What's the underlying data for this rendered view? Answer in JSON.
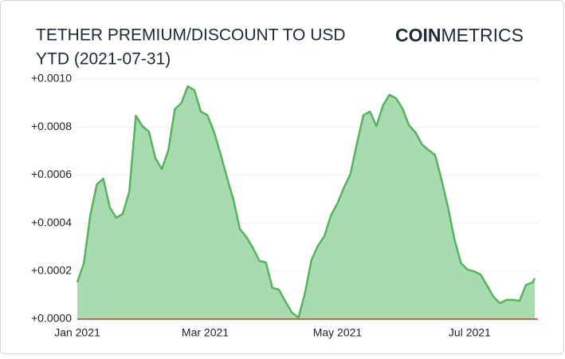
{
  "chart_data": {
    "type": "area",
    "title_lines": [
      "TETHER PREMIUM/DISCOUNT TO USD",
      "YTD (2021-07-31)"
    ],
    "logo": {
      "bold": "COIN",
      "light": "METRICS"
    },
    "x": [
      "2021-01-01",
      "2021-01-04",
      "2021-01-07",
      "2021-01-10",
      "2021-01-13",
      "2021-01-16",
      "2021-01-19",
      "2021-01-22",
      "2021-01-25",
      "2021-01-28",
      "2021-01-31",
      "2021-02-03",
      "2021-02-06",
      "2021-02-09",
      "2021-02-12",
      "2021-02-15",
      "2021-02-18",
      "2021-02-21",
      "2021-02-24",
      "2021-02-27",
      "2021-03-02",
      "2021-03-05",
      "2021-03-08",
      "2021-03-11",
      "2021-03-14",
      "2021-03-17",
      "2021-03-20",
      "2021-03-23",
      "2021-03-26",
      "2021-03-29",
      "2021-04-01",
      "2021-04-04",
      "2021-04-07",
      "2021-04-10",
      "2021-04-13",
      "2021-04-16",
      "2021-04-19",
      "2021-04-22",
      "2021-04-25",
      "2021-04-28",
      "2021-05-01",
      "2021-05-04",
      "2021-05-07",
      "2021-05-10",
      "2021-05-13",
      "2021-05-16",
      "2021-05-19",
      "2021-05-22",
      "2021-05-25",
      "2021-05-28",
      "2021-05-31",
      "2021-06-03",
      "2021-06-06",
      "2021-06-09",
      "2021-06-12",
      "2021-06-15",
      "2021-06-18",
      "2021-06-21",
      "2021-06-24",
      "2021-06-27",
      "2021-06-30",
      "2021-07-03",
      "2021-07-06",
      "2021-07-09",
      "2021-07-12",
      "2021-07-15",
      "2021-07-18",
      "2021-07-21",
      "2021-07-24",
      "2021-07-27",
      "2021-07-30",
      "2021-07-31"
    ],
    "series": [
      {
        "name": "Tether premium",
        "color": "#56b35d",
        "fill": "#a8dbb0",
        "values": [
          0.000153,
          0.000233,
          0.000432,
          0.000561,
          0.000585,
          0.000465,
          0.000422,
          0.000439,
          0.000532,
          0.000847,
          0.000804,
          0.000781,
          0.000671,
          0.000625,
          0.000704,
          0.000874,
          0.0009,
          0.00097,
          0.000953,
          0.000864,
          0.00085,
          0.000781,
          0.000691,
          0.000591,
          0.000498,
          0.000375,
          0.000342,
          0.000296,
          0.000243,
          0.000236,
          0.00013,
          0.000123,
          7.3e-05,
          2.7e-05,
          7e-06,
          0.000106,
          0.000246,
          0.000306,
          0.000346,
          0.000432,
          0.000482,
          0.000548,
          0.000605,
          0.000731,
          0.00085,
          0.000864,
          0.000804,
          0.00089,
          0.000934,
          0.00092,
          0.000877,
          0.000807,
          0.000777,
          0.000728,
          0.000704,
          0.000684,
          0.000581,
          0.000465,
          0.000332,
          0.000233,
          0.000206,
          0.000199,
          0.000186,
          0.00014,
          9.3e-05,
          6.6e-05,
          8e-05,
          8e-05,
          7.6e-05,
          0.000143,
          0.000153,
          0.00017
        ]
      }
    ],
    "xlim": [
      "2021-01-01",
      "2021-07-31"
    ],
    "xticks": [
      {
        "value": "2021-01-01",
        "label": "Jan 2021"
      },
      {
        "value": "2021-03-01",
        "label": "Mar 2021"
      },
      {
        "value": "2021-05-01",
        "label": "May 2021"
      },
      {
        "value": "2021-07-01",
        "label": "Jul 2021"
      }
    ],
    "ylim": [
      0,
      0.001
    ],
    "yticks": [
      {
        "value": 0,
        "label": "+0.0000"
      },
      {
        "value": 0.0002,
        "label": "+0.0002"
      },
      {
        "value": 0.0004,
        "label": "+0.0004"
      },
      {
        "value": 0.0006,
        "label": "+0.0006"
      },
      {
        "value": 0.0008,
        "label": "+0.0008"
      },
      {
        "value": 0.001,
        "label": "+0.0010"
      }
    ],
    "grid": true,
    "baseline_color": "#c0392b"
  }
}
